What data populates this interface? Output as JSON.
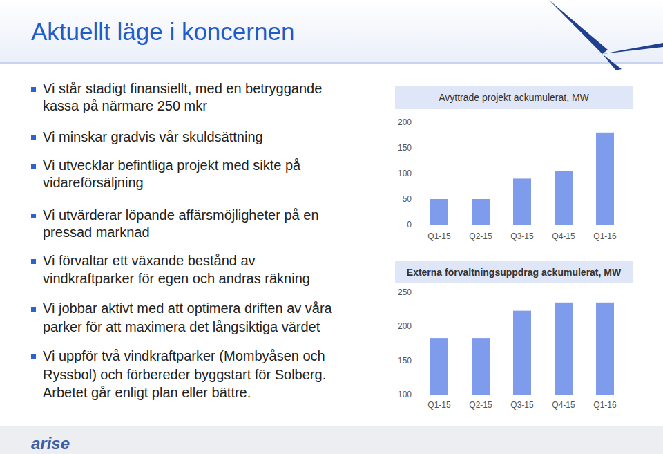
{
  "slide": {
    "title": "Aktuellt läge i koncernen",
    "bullets": [
      [
        "Vi står stadigt finansiellt, med en betryggande",
        "kassa på närmare 250 mkr"
      ],
      [
        "Vi minskar gradvis vår skuldsättning"
      ],
      [
        "Vi utvecklar befintliga projekt med sikte på",
        "vidareförsäljning"
      ],
      [
        "Vi utvärderar löpande affärsmöjligheter på en",
        "pressad marknad"
      ],
      [
        "Vi förvaltar ett växande bestånd av",
        "vindkraftparker för egen och andras räkning"
      ],
      [
        "Vi jobbar aktivt med att optimera driften av våra",
        "parker för att maximera det långsiktiga värdet"
      ],
      [
        "Vi uppför två vindkraftparker (Mombyåsen och",
        "Ryssbol) och förbereder byggstart för Solberg.",
        "Arbetet går enligt plan eller bättre."
      ]
    ],
    "logo": "arise"
  },
  "chart_data": [
    {
      "type": "bar",
      "title": "Avyttrade projekt ackumulerat, MW",
      "categories": [
        "Q1-15",
        "Q2-15",
        "Q3-15",
        "Q4-15",
        "Q1-16"
      ],
      "values": [
        50,
        50,
        90,
        105,
        180
      ],
      "color": "#7f9bec",
      "ylim": [
        0,
        200
      ],
      "yticks": [
        0,
        50,
        100,
        150,
        200
      ],
      "grid": false
    },
    {
      "type": "bar",
      "title": "Externa förvaltningsuppdrag ackumulerat, MW",
      "categories": [
        "Q1-15",
        "Q2-15",
        "Q3-15",
        "Q4-15",
        "Q1-16"
      ],
      "values": [
        183,
        183,
        223,
        235,
        235
      ],
      "color": "#7f9bec",
      "ylim": [
        100,
        250
      ],
      "yticks": [
        100,
        150,
        200,
        250
      ],
      "grid": false
    }
  ]
}
